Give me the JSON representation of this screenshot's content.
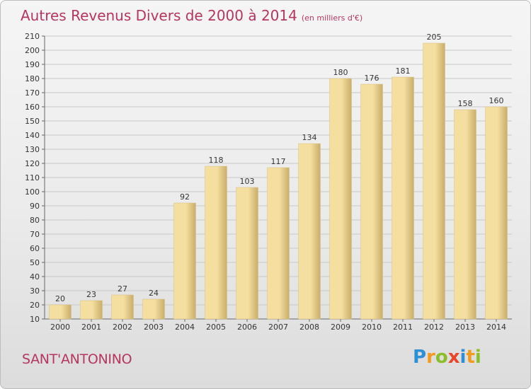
{
  "header": {
    "title": "Autres Revenus Divers de 2000 à 2014",
    "subtitle": "(en milliers d'€)"
  },
  "footer": {
    "commune": "SANT'ANTONINO",
    "logo_text": "Proxiti"
  },
  "colors": {
    "title": "#b5365e",
    "bar_light": "#f4dea0",
    "bar_dark": "#c9ad6a",
    "grid": "#c8c8c8"
  },
  "chart_data": {
    "type": "bar",
    "title": "Autres Revenus Divers de 2000 à 2014",
    "subtitle": "(en milliers d'€)",
    "xlabel": "",
    "ylabel": "",
    "categories": [
      "2000",
      "2001",
      "2002",
      "2003",
      "2004",
      "2005",
      "2006",
      "2007",
      "2008",
      "2009",
      "2010",
      "2011",
      "2012",
      "2013",
      "2014"
    ],
    "values": [
      20,
      23,
      27,
      24,
      92,
      118,
      103,
      117,
      134,
      180,
      176,
      181,
      205,
      158,
      160
    ],
    "ylim": [
      10,
      210
    ],
    "yticks": [
      10,
      20,
      30,
      40,
      50,
      60,
      70,
      80,
      90,
      100,
      110,
      120,
      130,
      140,
      150,
      160,
      170,
      180,
      190,
      200,
      210
    ],
    "grid": true,
    "legend": "none"
  }
}
